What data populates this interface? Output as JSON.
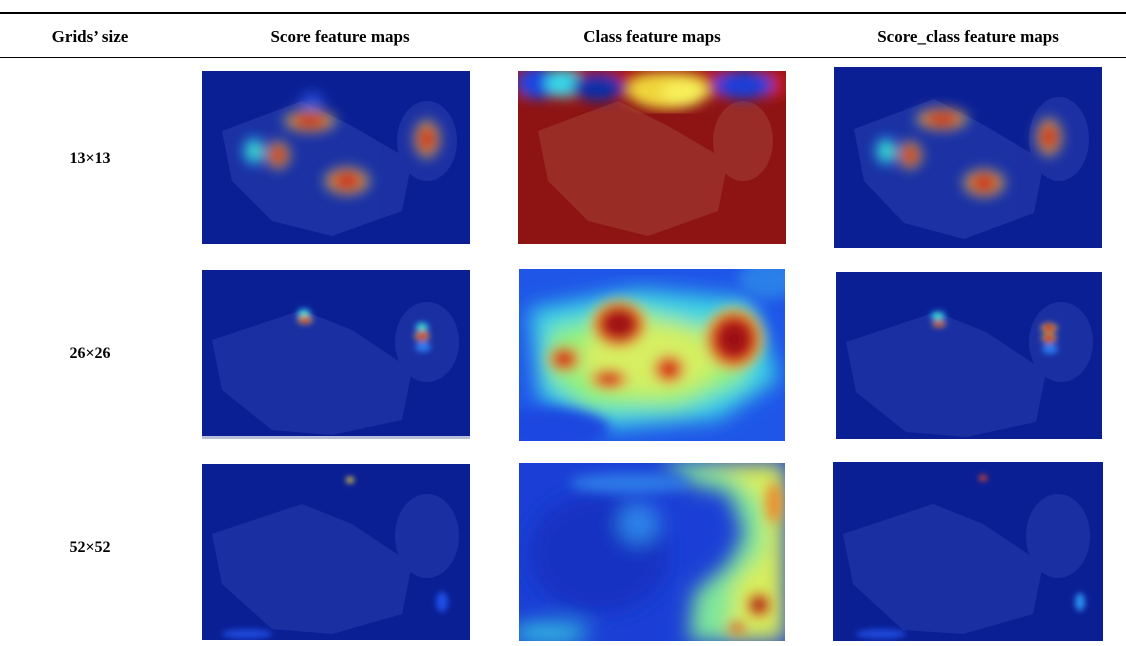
{
  "table": {
    "headers": {
      "grid": "Grids’ size",
      "score": "Score feature maps",
      "class": "Class feature maps",
      "score_class": "Score_class feature maps"
    },
    "rows": [
      {
        "grid": "13×13"
      },
      {
        "grid": "26×26"
      },
      {
        "grid": "52×52"
      }
    ]
  },
  "colors": {
    "jet_dark_blue": "#0a1d8f",
    "jet_red": "#c8141b",
    "jet_dark_red": "#8e1414",
    "jet_yellow": "#f0e23a",
    "jet_cyan": "#36d3e0"
  }
}
